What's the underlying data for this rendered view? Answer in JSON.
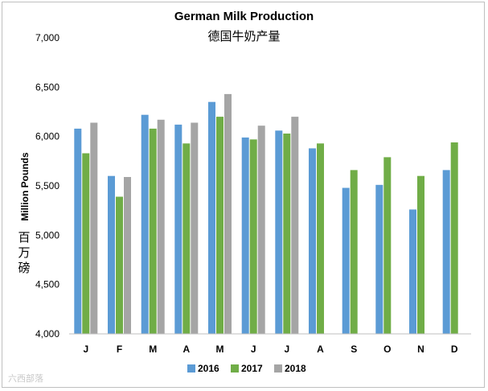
{
  "chart_data": {
    "type": "bar",
    "title": "German Milk Production",
    "subtitle": "德国牛奶产量",
    "ylabel": "Million Pounds",
    "ylabel_cn": [
      "百",
      "万",
      "磅"
    ],
    "ylim": [
      4000,
      7000
    ],
    "yticks": [
      4000,
      4500,
      5000,
      5500,
      6000,
      6500,
      7000
    ],
    "ytick_labels": [
      "4,000",
      "4,500",
      "5,000",
      "5,500",
      "6,000",
      "6,500",
      "7,000"
    ],
    "categories": [
      "J",
      "F",
      "M",
      "A",
      "M",
      "J",
      "J",
      "A",
      "S",
      "O",
      "N",
      "D"
    ],
    "series": [
      {
        "name": "2016",
        "color": "#5b9bd5",
        "values": [
          6080,
          5600,
          6220,
          6120,
          6350,
          5990,
          6060,
          5880,
          5480,
          5510,
          5260,
          5660
        ]
      },
      {
        "name": "2017",
        "color": "#70ad47",
        "values": [
          5830,
          5390,
          6080,
          5930,
          6200,
          5970,
          6030,
          5930,
          5660,
          5790,
          5600,
          5940
        ]
      },
      {
        "name": "2018",
        "color": "#a5a5a5",
        "values": [
          6140,
          5590,
          6170,
          6140,
          6430,
          6110,
          6200,
          null,
          null,
          null,
          null,
          null
        ]
      }
    ],
    "legend_position": "bottom",
    "grid": false
  },
  "watermark": "六西部落"
}
